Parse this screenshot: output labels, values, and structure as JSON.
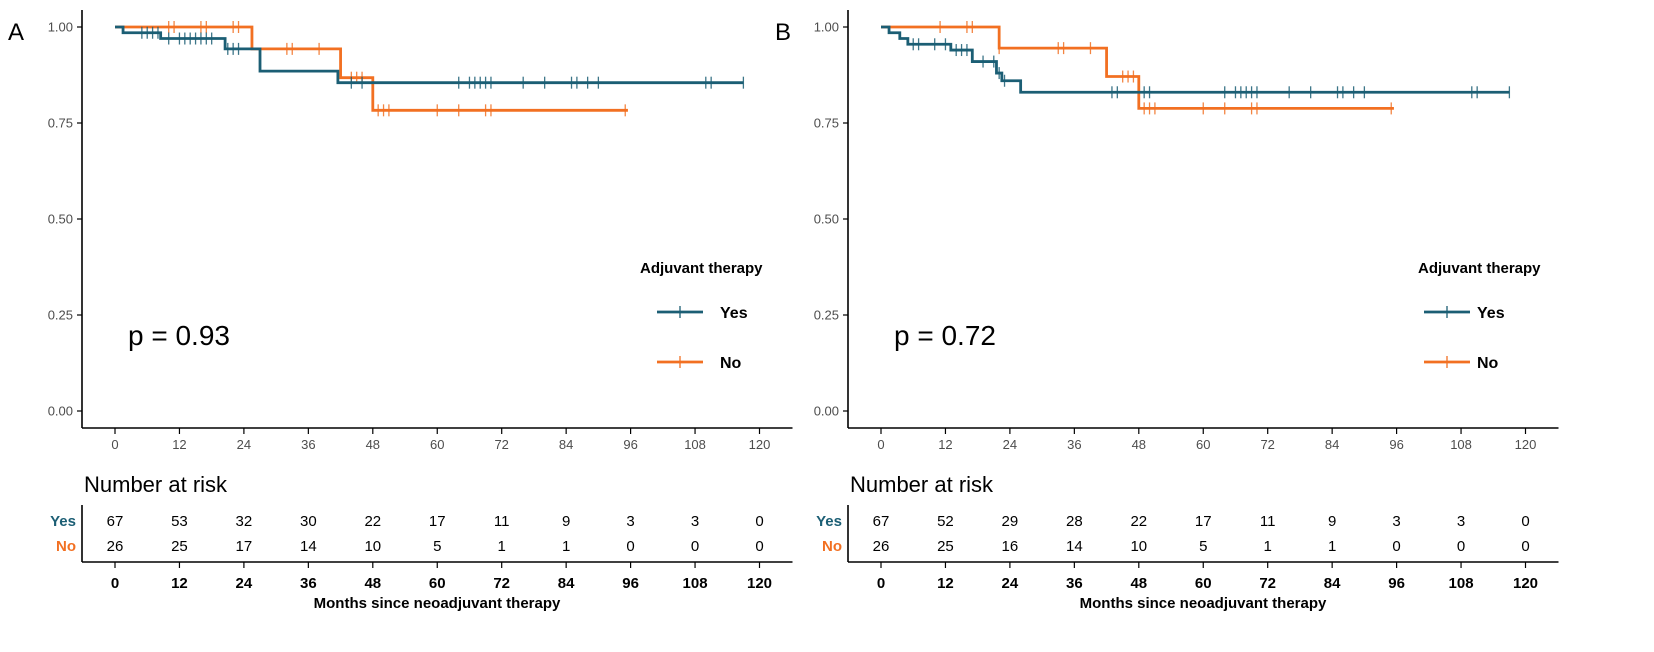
{
  "colors": {
    "yes": "#1b5e74",
    "no": "#f27022",
    "axis": "#000000",
    "tick_text": "#4d4d4d"
  },
  "chart_data": [
    {
      "type": "line",
      "panel_label": "A",
      "p_value": "p = 0.93",
      "xlabel": "Months since neoadjuvant therapy",
      "ylabel": "",
      "xlim": [
        0,
        120
      ],
      "ylim": [
        0,
        1
      ],
      "x_ticks": [
        0,
        12,
        24,
        36,
        48,
        60,
        72,
        84,
        96,
        108,
        120
      ],
      "y_ticks": [
        "0.00",
        "0.25",
        "0.50",
        "0.75",
        "1.00"
      ],
      "legend": {
        "title": "Adjuvant therapy",
        "items": [
          "Yes",
          "No"
        ]
      },
      "series": [
        {
          "name": "Yes",
          "steps": [
            [
              0,
              1.0
            ],
            [
              1.5,
              0.985
            ],
            [
              8.5,
              0.97
            ],
            [
              20.5,
              0.943
            ],
            [
              27,
              0.885
            ],
            [
              41.5,
              0.855
            ],
            [
              117,
              0.855
            ]
          ],
          "censor": [
            5,
            6,
            7,
            8,
            10,
            12,
            13,
            14,
            15,
            16,
            17,
            18,
            21,
            22,
            23,
            44,
            46,
            64,
            66,
            67,
            68,
            69,
            70,
            76,
            80,
            85,
            86,
            88,
            90,
            110,
            111,
            117
          ]
        },
        {
          "name": "No",
          "steps": [
            [
              0,
              1.0
            ],
            [
              25.5,
              0.943
            ],
            [
              42,
              0.868
            ],
            [
              48,
              0.783
            ],
            [
              95.5,
              0.783
            ]
          ],
          "censor": [
            10,
            11,
            16,
            17,
            22,
            23,
            32,
            33,
            38,
            44,
            45,
            46,
            49,
            50,
            51,
            60,
            64,
            69,
            70,
            95
          ]
        }
      ],
      "risk_table": {
        "title": "Number at risk",
        "times": [
          0,
          12,
          24,
          36,
          48,
          60,
          72,
          84,
          96,
          108,
          120
        ],
        "rows": [
          {
            "label": "Yes",
            "values": [
              "67",
              "53",
              "32",
              "30",
              "22",
              "17",
              "11",
              "9",
              "3",
              "3",
              "0"
            ]
          },
          {
            "label": "No",
            "values": [
              "26",
              "25",
              "17",
              "14",
              "10",
              "5",
              "1",
              "1",
              "0",
              "0",
              "0"
            ]
          }
        ]
      }
    },
    {
      "type": "line",
      "panel_label": "B",
      "p_value": "p = 0.72",
      "xlabel": "Months since neoadjuvant therapy",
      "ylabel": "",
      "xlim": [
        0,
        120
      ],
      "ylim": [
        0,
        1
      ],
      "x_ticks": [
        0,
        12,
        24,
        36,
        48,
        60,
        72,
        84,
        96,
        108,
        120
      ],
      "y_ticks": [
        "0.00",
        "0.25",
        "0.50",
        "0.75",
        "1.00"
      ],
      "legend": {
        "title": "Adjuvant therapy",
        "items": [
          "Yes",
          "No"
        ]
      },
      "series": [
        {
          "name": "Yes",
          "steps": [
            [
              0,
              1.0
            ],
            [
              1.5,
              0.985
            ],
            [
              3.5,
              0.97
            ],
            [
              5,
              0.955
            ],
            [
              13,
              0.94
            ],
            [
              17,
              0.91
            ],
            [
              21.5,
              0.88
            ],
            [
              22.5,
              0.86
            ],
            [
              26,
              0.83
            ],
            [
              117,
              0.83
            ]
          ],
          "censor": [
            6,
            7,
            10,
            12,
            14,
            15,
            16,
            19,
            21,
            22,
            23,
            43,
            44,
            49,
            50,
            64,
            66,
            67,
            68,
            69,
            70,
            76,
            80,
            85,
            86,
            88,
            90,
            110,
            111,
            117
          ]
        },
        {
          "name": "No",
          "steps": [
            [
              0,
              1.0
            ],
            [
              22,
              0.945
            ],
            [
              42,
              0.871
            ],
            [
              48,
              0.788
            ],
            [
              95.5,
              0.788
            ]
          ],
          "censor": [
            11,
            16,
            17,
            22,
            33,
            34,
            39,
            45,
            46,
            47,
            49,
            50,
            51,
            60,
            64,
            69,
            70,
            95
          ]
        }
      ],
      "risk_table": {
        "title": "Number at risk",
        "times": [
          0,
          12,
          24,
          36,
          48,
          60,
          72,
          84,
          96,
          108,
          120
        ],
        "rows": [
          {
            "label": "Yes",
            "values": [
              "67",
              "52",
              "29",
              "28",
              "22",
              "17",
              "11",
              "9",
              "3",
              "3",
              "0"
            ]
          },
          {
            "label": "No",
            "values": [
              "26",
              "25",
              "16",
              "14",
              "10",
              "5",
              "1",
              "1",
              "0",
              "0",
              "0"
            ]
          }
        ]
      }
    }
  ]
}
